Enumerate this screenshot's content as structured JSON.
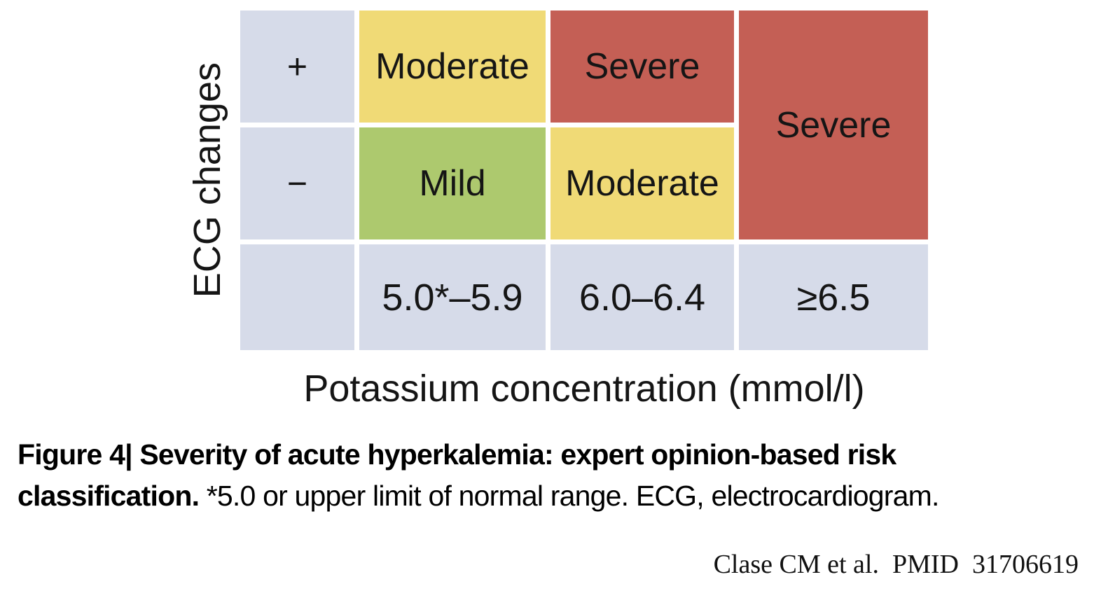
{
  "figure": {
    "y_axis_label": "ECG changes",
    "x_axis_label": "Potassium concentration (mmol/l)",
    "colors": {
      "mild": "#adc96e",
      "moderate": "#f0da76",
      "severe": "#c45f55",
      "axis_cell": "#d6dbe9"
    },
    "rows": [
      {
        "ecg_label": "+",
        "cells": [
          {
            "label": "Moderate",
            "color": "#f0da76"
          },
          {
            "label": "Severe",
            "color": "#c45f55"
          }
        ]
      },
      {
        "ecg_label": "−",
        "cells": [
          {
            "label": "Mild",
            "color": "#adc96e"
          },
          {
            "label": "Moderate",
            "color": "#f0da76"
          }
        ]
      }
    ],
    "span_cell": {
      "label": "Severe",
      "color": "#c45f55"
    },
    "potassium_ranges": [
      "5.0*–5.9",
      "6.0–6.4",
      "≥6.5"
    ]
  },
  "caption": {
    "bold": "Figure 4| Severity of acute hyperkalemia: expert opinion-based risk classification.",
    "normal": "*5.0 or upper limit of normal range. ECG, electrocardiogram."
  },
  "attribution": "Clase CM et al.  PMID  31706619",
  "chart_data": {
    "type": "heatmap",
    "title": "Severity of acute hyperkalemia: expert opinion-based risk classification",
    "xlabel": "Potassium concentration (mmol/l)",
    "ylabel": "ECG changes",
    "x_categories": [
      "5.0*–5.9",
      "6.0–6.4",
      "≥6.5"
    ],
    "y_categories": [
      "+",
      "−"
    ],
    "cells": [
      [
        "Moderate",
        "Severe",
        "Severe"
      ],
      [
        "Mild",
        "Moderate",
        "Severe"
      ]
    ],
    "legend_position": "none",
    "grid": false
  }
}
